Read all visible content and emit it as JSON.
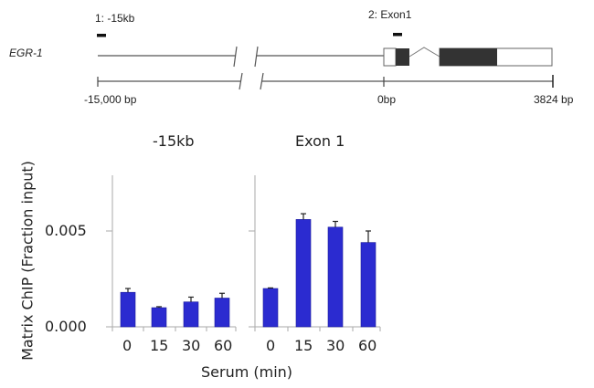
{
  "gene_diagram": {
    "gene_name": "EGR-1",
    "probe_1_label": "1: -15kb",
    "probe_2_label": "2: Exon1",
    "scale_start_label": "-15,000  bp",
    "scale_zero_label": "0bp",
    "scale_end_label": "3824",
    "scale_end_unit": "bp"
  },
  "chart_data": {
    "type": "bar",
    "ylabel": "Matrix ChIP (Fraction input)",
    "xlabel": "Serum (min)",
    "ylim": [
      0,
      0.008
    ],
    "yticks": [
      "0.000",
      "0.005"
    ],
    "ytick_values": [
      0.0,
      0.005
    ],
    "categories": [
      "0",
      "15",
      "30",
      "60"
    ],
    "bar_color": "#2b2bd0",
    "grid": false,
    "panels": [
      {
        "title": "-15kb",
        "values": [
          0.0018,
          0.001,
          0.0013,
          0.0015
        ],
        "errors": [
          0.0002,
          5e-05,
          0.00025,
          0.00025
        ]
      },
      {
        "title": "Exon 1",
        "values": [
          0.002,
          0.0056,
          0.0052,
          0.0044
        ],
        "errors": [
          3e-05,
          0.0003,
          0.0003,
          0.0006
        ]
      }
    ]
  }
}
